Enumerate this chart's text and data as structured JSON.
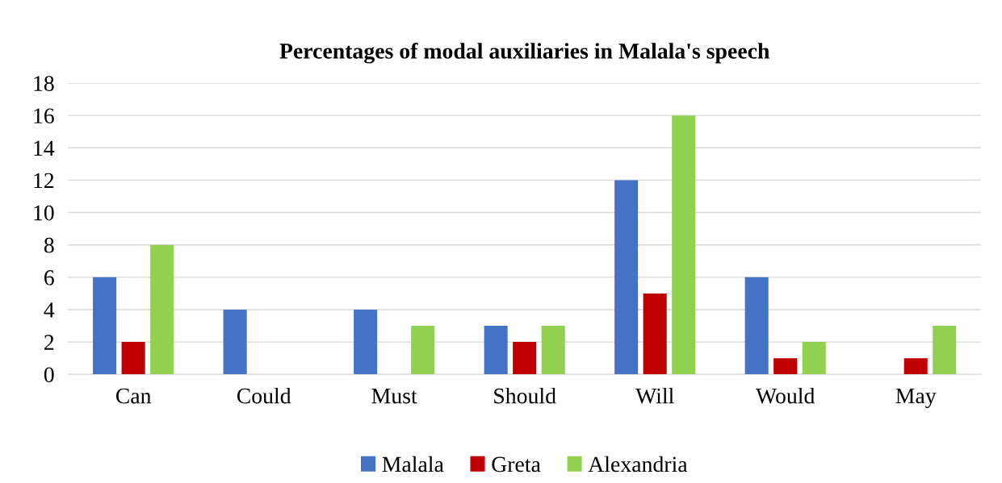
{
  "chart_data": {
    "type": "bar",
    "title": "Percentages of modal auxiliaries in Malala's speech",
    "categories": [
      "Can",
      "Could",
      "Must",
      "Should",
      "Will",
      "Would",
      "May"
    ],
    "series": [
      {
        "name": "Malala",
        "color": "#4472c4",
        "values": [
          6,
          4,
          4,
          3,
          12,
          6,
          0
        ]
      },
      {
        "name": "Greta",
        "color": "#c00000",
        "values": [
          2,
          0,
          0,
          2,
          5,
          1,
          1
        ]
      },
      {
        "name": "Alexandria",
        "color": "#92d050",
        "values": [
          8,
          0,
          3,
          3,
          16,
          2,
          3
        ]
      }
    ],
    "ylim": [
      0,
      18
    ],
    "yticks": [
      0,
      2,
      4,
      6,
      8,
      10,
      12,
      14,
      16,
      18
    ],
    "grid": "y",
    "legend": "bottom"
  }
}
